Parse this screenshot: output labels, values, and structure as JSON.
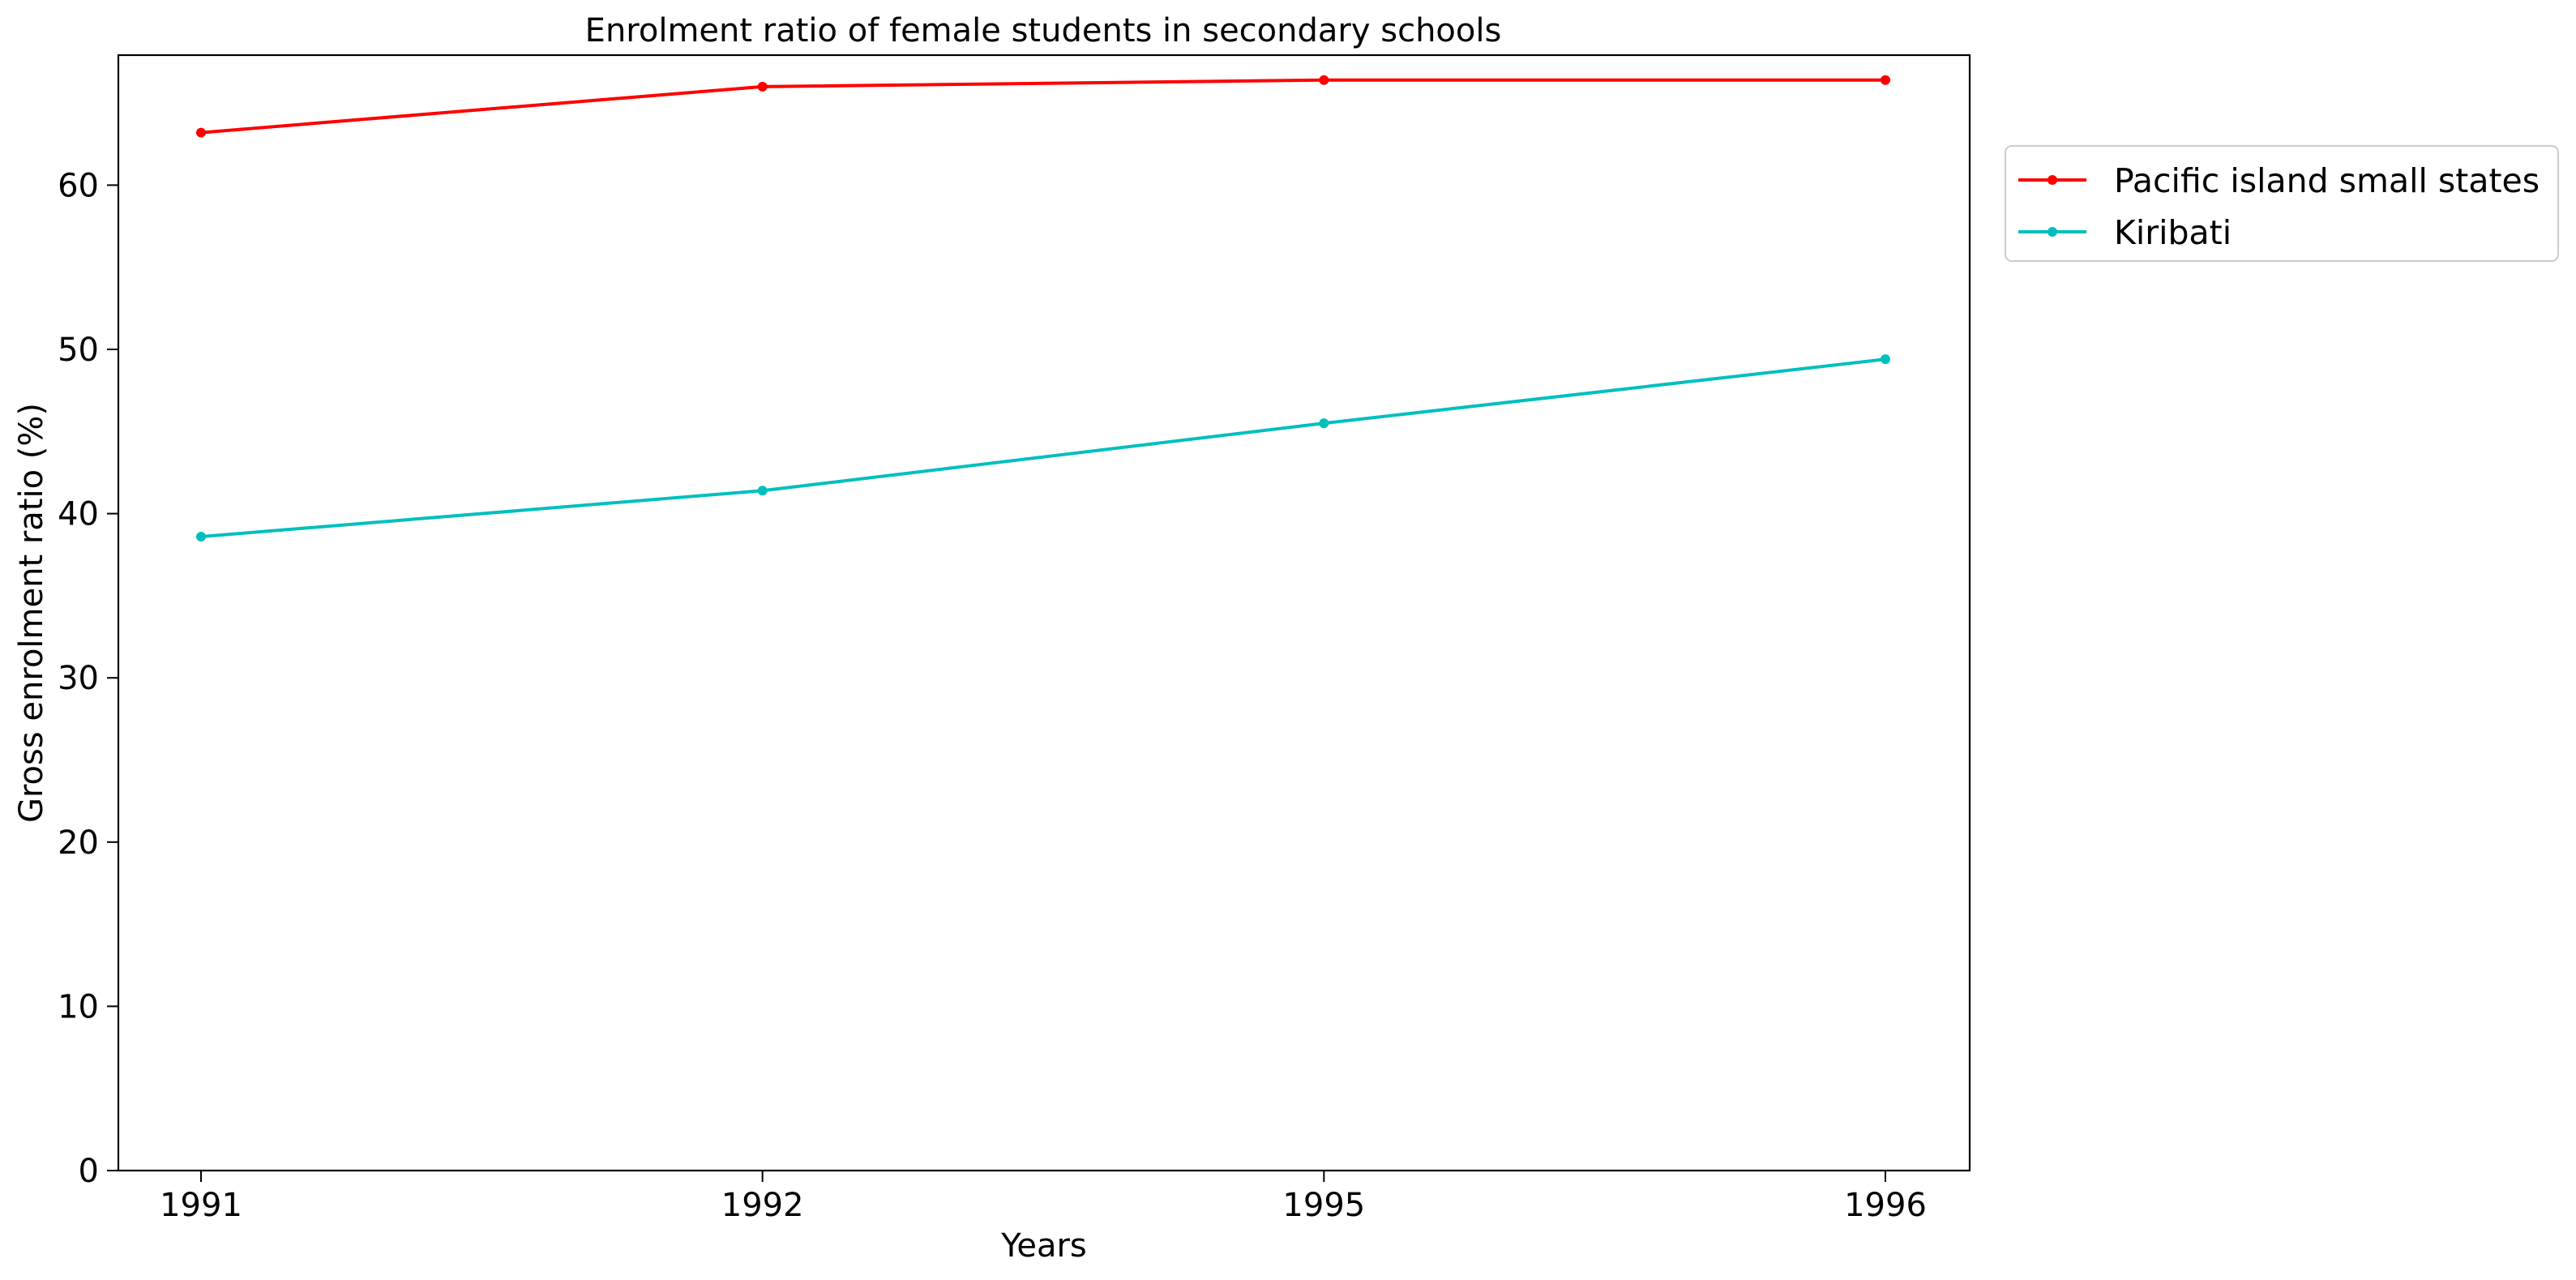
{
  "chart_data": {
    "type": "line",
    "title": "Enrolment ratio of female students in secondary schools",
    "xlabel": "Years",
    "ylabel": "Gross enrolment ratio (%)",
    "categories": [
      "1991",
      "1992",
      "1995",
      "1996"
    ],
    "y_ticks": [
      "0",
      "10",
      "20",
      "30",
      "40",
      "50",
      "60"
    ],
    "ylim": [
      0,
      68
    ],
    "grid": false,
    "legend_position": "outside-right-top",
    "series": [
      {
        "name": "Pacific island small states",
        "color": "#ff0000",
        "marker": "dot",
        "values": [
          63.2,
          66.0,
          66.4,
          66.4
        ]
      },
      {
        "name": "Kiribati",
        "color": "#00bfbf",
        "marker": "dot",
        "values": [
          38.6,
          41.4,
          45.5,
          49.4
        ]
      }
    ]
  }
}
